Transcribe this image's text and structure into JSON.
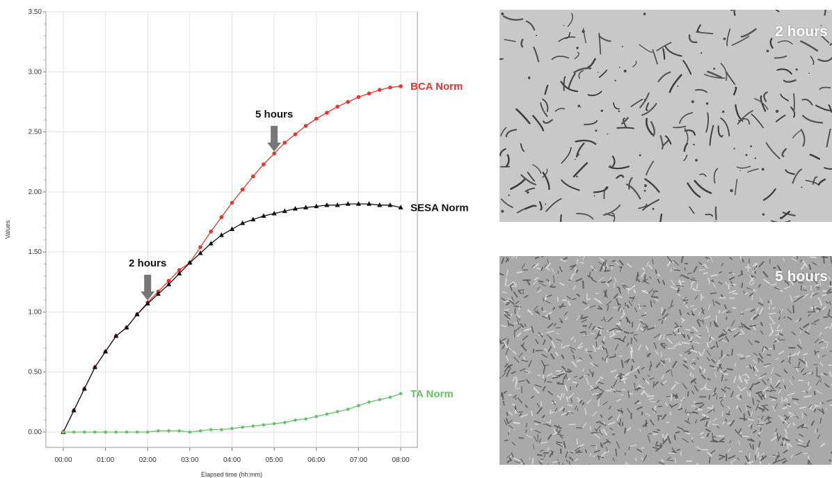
{
  "chart_data": {
    "type": "line",
    "xlabel": "Elapsed time (hh:mm)",
    "ylabel": "Values",
    "xlim": [
      0,
      8
    ],
    "ylim": [
      0,
      3.5
    ],
    "grid": true,
    "x_tick_labels": [
      "00:00",
      "01:00",
      "02:00",
      "03:00",
      "04:00",
      "05:00",
      "06:00",
      "07:00",
      "08:00"
    ],
    "y_tick_labels": [
      "0.00",
      "0.50",
      "1.00",
      "1.50",
      "2.00",
      "2.50",
      "3.00",
      "3.50"
    ],
    "x": [
      0,
      0.25,
      0.5,
      0.75,
      1,
      1.25,
      1.5,
      1.75,
      2,
      2.25,
      2.5,
      2.75,
      3,
      3.25,
      3.5,
      3.75,
      4,
      4.25,
      4.5,
      4.75,
      5,
      5.25,
      5.5,
      5.75,
      6,
      6.25,
      6.5,
      6.75,
      7,
      7.25,
      7.5,
      7.75,
      8
    ],
    "series": [
      {
        "name": "BCA Norm",
        "color": "#e8352b",
        "marker": "circle",
        "values": [
          0.0,
          0.18,
          0.36,
          0.54,
          0.67,
          0.8,
          0.87,
          0.98,
          1.08,
          1.17,
          1.26,
          1.35,
          1.41,
          1.54,
          1.67,
          1.79,
          1.91,
          2.02,
          2.13,
          2.23,
          2.32,
          2.41,
          2.48,
          2.55,
          2.61,
          2.66,
          2.71,
          2.75,
          2.79,
          2.82,
          2.85,
          2.87,
          2.88
        ]
      },
      {
        "name": "SESA Norm",
        "color": "#111111",
        "marker": "triangle",
        "values": [
          0.0,
          0.18,
          0.36,
          0.54,
          0.67,
          0.8,
          0.87,
          0.98,
          1.07,
          1.15,
          1.23,
          1.32,
          1.41,
          1.49,
          1.57,
          1.64,
          1.69,
          1.74,
          1.77,
          1.8,
          1.82,
          1.84,
          1.86,
          1.87,
          1.88,
          1.89,
          1.89,
          1.9,
          1.9,
          1.9,
          1.89,
          1.89,
          1.87
        ]
      },
      {
        "name": "TA Norm",
        "color": "#66c266",
        "marker": "circle",
        "values": [
          0.0,
          0.0,
          0.0,
          0.0,
          0.0,
          0.0,
          0.0,
          0.0,
          0.0,
          0.01,
          0.01,
          0.01,
          0.0,
          0.01,
          0.02,
          0.02,
          0.03,
          0.04,
          0.05,
          0.06,
          0.07,
          0.08,
          0.1,
          0.11,
          0.13,
          0.15,
          0.17,
          0.19,
          0.22,
          0.25,
          0.27,
          0.29,
          0.32
        ]
      }
    ],
    "annotations": [
      {
        "text": "2 hours",
        "x": 2,
        "y": 1.38
      },
      {
        "text": "5 hours",
        "x": 5,
        "y": 2.62
      }
    ]
  },
  "images": [
    {
      "label": "2 hours",
      "texture": "sparse-filaments"
    },
    {
      "label": "5 hours",
      "texture": "dense-granular"
    }
  ]
}
